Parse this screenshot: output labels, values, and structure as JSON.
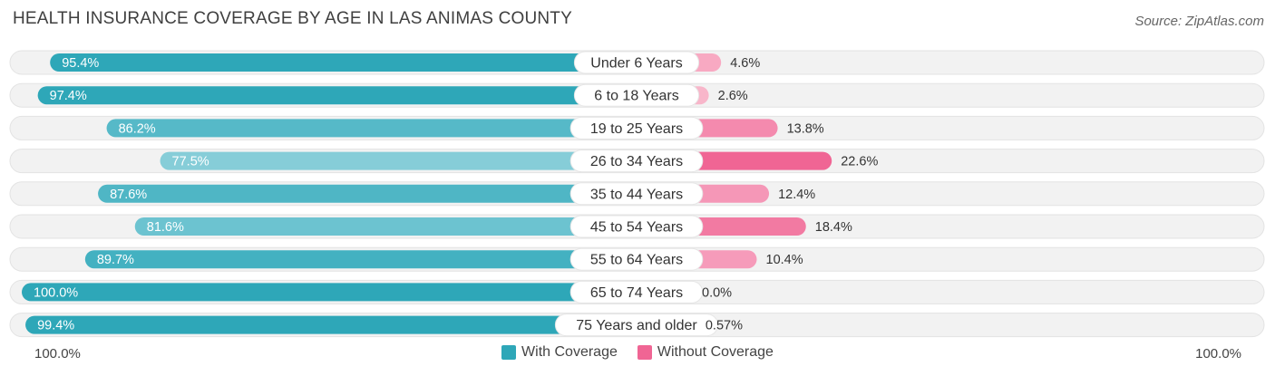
{
  "title": "HEALTH INSURANCE COVERAGE BY AGE IN LAS ANIMAS COUNTY",
  "source": "Source: ZipAtlas.com",
  "legend": {
    "with": "With Coverage",
    "without": "Without Coverage"
  },
  "axis": {
    "left_label": "100.0%",
    "right_label": "100.0%"
  },
  "colors": {
    "with_dark": "#2ea7b8",
    "with_light": "#86cdd8",
    "without_dark": "#f06594",
    "without_light": "#f8b6ca",
    "row_bg": "#f2f2f2"
  },
  "chart_data": {
    "type": "bar",
    "orientation": "diverging-horizontal",
    "title": "HEALTH INSURANCE COVERAGE BY AGE IN LAS ANIMAS COUNTY",
    "categories": [
      "Under 6 Years",
      "6 to 18 Years",
      "19 to 25 Years",
      "26 to 34 Years",
      "35 to 44 Years",
      "45 to 54 Years",
      "55 to 64 Years",
      "65 to 74 Years",
      "75 Years and older"
    ],
    "series": [
      {
        "name": "With Coverage",
        "values": [
          95.4,
          97.4,
          86.2,
          77.5,
          87.6,
          81.6,
          89.7,
          100.0,
          99.4
        ],
        "labels": [
          "95.4%",
          "97.4%",
          "86.2%",
          "77.5%",
          "87.6%",
          "81.6%",
          "89.7%",
          "100.0%",
          "99.4%"
        ]
      },
      {
        "name": "Without Coverage",
        "values": [
          4.6,
          2.6,
          13.8,
          22.6,
          12.4,
          18.4,
          10.4,
          0.0,
          0.57
        ],
        "labels": [
          "4.6%",
          "2.6%",
          "13.8%",
          "22.6%",
          "12.4%",
          "18.4%",
          "10.4%",
          "0.0%",
          "0.57%"
        ]
      }
    ],
    "xlim": [
      0,
      100
    ]
  }
}
